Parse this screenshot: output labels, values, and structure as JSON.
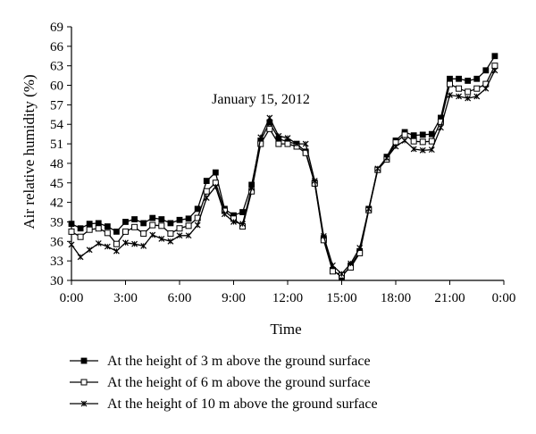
{
  "chart_data": {
    "type": "line",
    "title": "January 15, 2012",
    "xlabel": "Time",
    "ylabel": "Air relative humidity (%)",
    "ylim": [
      30,
      69
    ],
    "yticks": [
      30,
      33,
      36,
      39,
      42,
      45,
      48,
      51,
      54,
      57,
      60,
      63,
      66,
      69
    ],
    "xlim_hours": [
      0,
      24
    ],
    "xticks": [
      "0:00",
      "3:00",
      "6:00",
      "9:00",
      "12:00",
      "15:00",
      "18:00",
      "21:00",
      "0:00"
    ],
    "x_hours": [
      0,
      0.5,
      1,
      1.5,
      2,
      2.5,
      3,
      3.5,
      4,
      4.5,
      5,
      5.5,
      6,
      6.5,
      7,
      7.5,
      8,
      8.5,
      9,
      9.5,
      10,
      10.5,
      11,
      11.5,
      12,
      12.5,
      13,
      13.5,
      14,
      14.5,
      15,
      15.5,
      16,
      16.5,
      17,
      17.5,
      18,
      18.5,
      19,
      19.5,
      20,
      20.5,
      21,
      21.5,
      22,
      22.5,
      23,
      23.5
    ],
    "grid": false,
    "legend_position": "bottom",
    "series": [
      {
        "name": "At the height of 3 m above the ground surface",
        "marker": "filled-square",
        "values": [
          38.7,
          38.0,
          38.7,
          38.8,
          38.3,
          37.5,
          39.0,
          39.4,
          38.8,
          39.6,
          39.4,
          38.8,
          39.3,
          39.5,
          41.0,
          45.3,
          46.6,
          41.0,
          40.0,
          40.5,
          44.7,
          51.5,
          54.3,
          51.8,
          51.3,
          51.0,
          49.8,
          45.0,
          36.5,
          31.6,
          30.5,
          32.3,
          34.5,
          41.0,
          47.0,
          49.0,
          51.5,
          52.8,
          52.3,
          52.4,
          52.5,
          55.0,
          61.0,
          61.0,
          60.7,
          61.0,
          62.3,
          64.5
        ]
      },
      {
        "name": "At the height of 6 m above the ground surface",
        "marker": "open-square",
        "values": [
          37.5,
          36.7,
          37.8,
          38.0,
          37.3,
          35.6,
          37.5,
          38.2,
          37.2,
          38.5,
          38.4,
          37.2,
          38.0,
          38.4,
          39.6,
          43.7,
          45.0,
          40.7,
          39.5,
          38.3,
          43.7,
          51.0,
          53.3,
          51.0,
          51.0,
          50.6,
          49.6,
          44.9,
          36.2,
          31.4,
          30.8,
          32.0,
          34.2,
          40.8,
          47.0,
          48.6,
          51.2,
          52.4,
          51.4,
          51.3,
          51.4,
          54.4,
          60.2,
          59.5,
          59.0,
          59.5,
          60.2,
          63.0
        ]
      },
      {
        "name": "At the height of 10 m above the ground surface",
        "marker": "x-star",
        "values": [
          35.5,
          33.6,
          34.7,
          35.7,
          35.2,
          34.5,
          35.8,
          35.6,
          35.3,
          37.0,
          36.4,
          36.0,
          36.9,
          36.9,
          38.5,
          42.7,
          44.4,
          40.2,
          39.0,
          38.7,
          44.2,
          52.0,
          55.0,
          52.2,
          51.9,
          51.0,
          51.0,
          45.3,
          36.8,
          32.3,
          31.0,
          32.6,
          35.0,
          41.0,
          47.2,
          48.8,
          50.6,
          51.5,
          50.2,
          50.0,
          50.1,
          53.5,
          58.5,
          58.3,
          58.0,
          58.3,
          59.5,
          62.3
        ]
      }
    ]
  }
}
